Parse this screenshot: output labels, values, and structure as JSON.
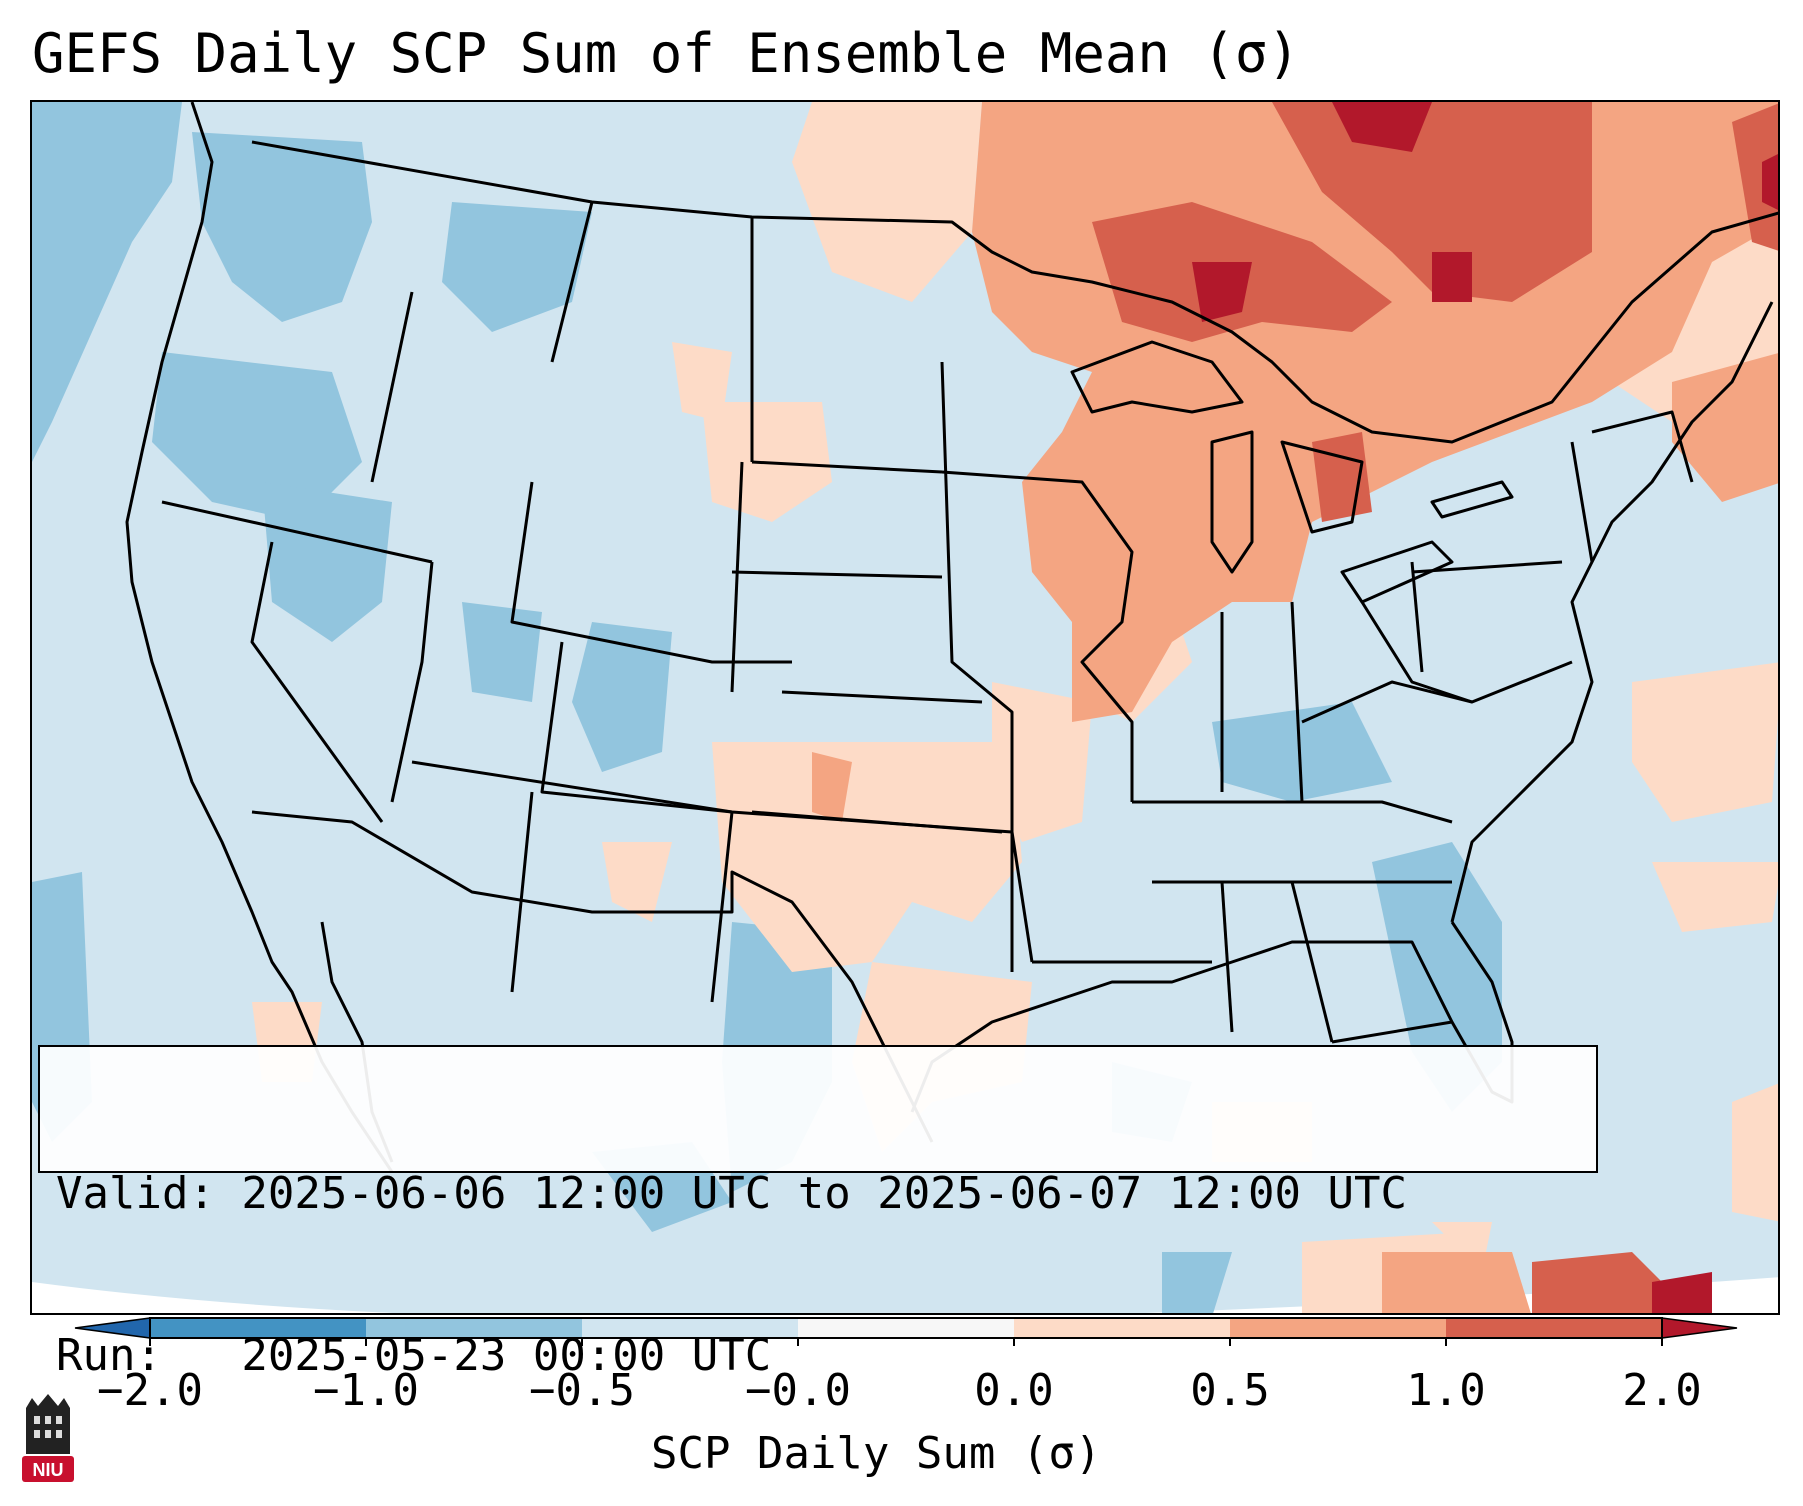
{
  "title": "GEFS Daily SCP Sum of Ensemble Mean (σ)",
  "info": {
    "valid": "Valid: 2025-06-06 12:00 UTC to 2025-06-07 12:00 UTC",
    "run": "Run:   2025-05-23 00:00 UTC"
  },
  "colorbar": {
    "label": "SCP Daily Sum (σ)",
    "ticks": [
      "−2.0",
      "−1.0",
      "−0.5",
      "−0.0",
      "0.0",
      "0.5",
      "1.0",
      "2.0"
    ],
    "colors": {
      "lt_neg2": "#2166ac",
      "neg2_neg1": "#4393c3",
      "neg1_neg05": "#92c5de",
      "neg05_0": "#d1e5f0",
      "zero": "#f7f7f7",
      "pos0_05": "#fddbc7",
      "pos05_1": "#f4a582",
      "pos1_2": "#d6604d",
      "gt_2": "#b2182b"
    }
  },
  "logo": {
    "text": "NIU"
  }
}
